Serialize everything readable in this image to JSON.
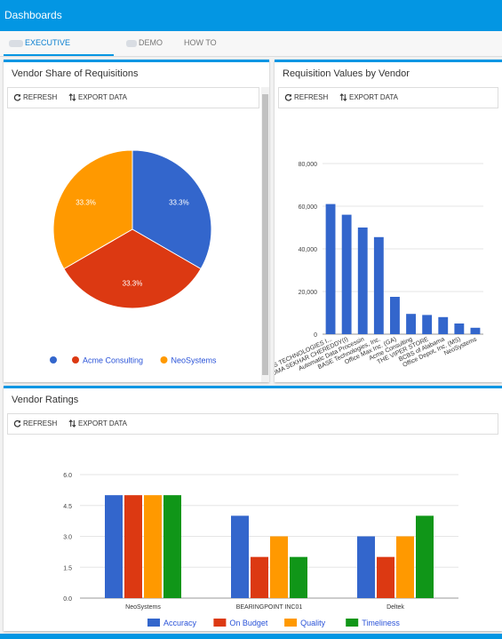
{
  "header": {
    "title": "Dashboards"
  },
  "tabs": [
    {
      "label": "EXECUTIVE DASHBOARD",
      "active": true
    },
    {
      "label": "DEMO",
      "active": false
    },
    {
      "label": "HOW TO",
      "active": false
    }
  ],
  "toolbar": {
    "refresh": "REFRESH",
    "export": "EXPORT DATA"
  },
  "colors": {
    "accent": "#0396e3",
    "blue": "#3366cc",
    "red": "#dc3912",
    "orange": "#ff9900",
    "green": "#109618"
  },
  "pie_panel": {
    "title": "Vendor Share of Requisitions",
    "legend": [
      {
        "label": "",
        "color": "#3366cc"
      },
      {
        "label": "Acme Consulting",
        "color": "#dc3912"
      },
      {
        "label": "NeoSystems",
        "color": "#ff9900"
      }
    ]
  },
  "bar_panel": {
    "title": "Requisition Values by Vendor"
  },
  "ratings_panel": {
    "title": "Vendor Ratings"
  },
  "chart_data": [
    {
      "type": "pie",
      "labels": [
        "",
        "Acme Consulting",
        "NeoSystems"
      ],
      "values": [
        33.3,
        33.3,
        33.3
      ],
      "slice_labels": [
        "33.3%",
        "33.3%",
        "33.3%"
      ],
      "colors": [
        "#3366cc",
        "#dc3912",
        "#ff9900"
      ],
      "legend": "bottom"
    },
    {
      "type": "bar",
      "categories": [
        "S TECHNOLOGIES I...",
        "DMA SEKHAR CHEREDDY(I)",
        "Automatic Data Processin",
        "BASE Technologies, Inc.",
        "Office Max Inc. (GA)",
        "Acme Consulting",
        "THE VIPER STORE",
        "BCBS of Alabama",
        "Office Depot, Inc. (MS)",
        "NeoSystems"
      ],
      "values": [
        61000,
        56000,
        50000,
        45500,
        17500,
        9500,
        9000,
        8000,
        5000,
        3000
      ],
      "yticks": [
        "0",
        "20,000",
        "40,000",
        "60,000",
        "80,000"
      ],
      "ylim": [
        0,
        80000
      ],
      "color": "#3366cc",
      "grid": true
    },
    {
      "type": "bar",
      "categories": [
        "NeoSystems",
        "BEARINGPOINT INC01",
        "Deltek"
      ],
      "series": [
        {
          "name": "Accuracy",
          "values": [
            5,
            4,
            3
          ],
          "color": "#3366cc"
        },
        {
          "name": "On Budget",
          "values": [
            5,
            2,
            2
          ],
          "color": "#dc3912"
        },
        {
          "name": "Quality",
          "values": [
            5,
            3,
            3
          ],
          "color": "#ff9900"
        },
        {
          "name": "Timeliness",
          "values": [
            5,
            2,
            4
          ],
          "color": "#109618"
        }
      ],
      "yticks": [
        "0.0",
        "1.5",
        "3.0",
        "4.5",
        "6.0"
      ],
      "ylim": [
        0,
        6
      ],
      "legend": "bottom",
      "grid": true
    }
  ]
}
